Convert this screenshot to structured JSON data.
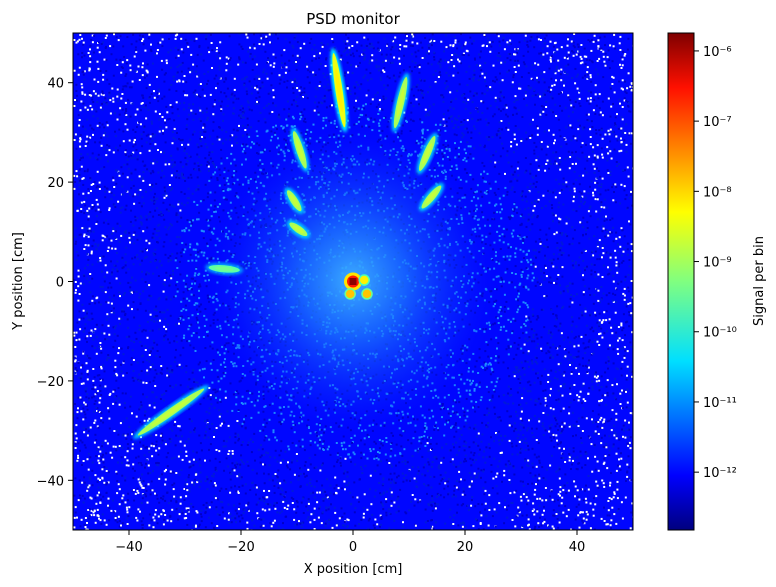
{
  "chart_data": {
    "type": "heatmap",
    "title": "PSD monitor",
    "xlabel": "X position [cm]",
    "ylabel": "Y position [cm]",
    "xlim": [
      -50,
      50
    ],
    "ylim": [
      -50,
      50
    ],
    "xticks": [
      -40,
      -20,
      0,
      20,
      40
    ],
    "yticks": [
      -40,
      -20,
      0,
      20,
      40
    ],
    "xtick_labels": [
      "−40",
      "−20",
      "0",
      "20",
      "40"
    ],
    "ytick_labels": [
      "−40",
      "−20",
      "0",
      "20",
      "40"
    ],
    "grid": false,
    "colormap": "jet",
    "colorbar": {
      "label": "Signal per bin",
      "scale": "log",
      "range": [
        1.5e-13,
        1.8e-06
      ],
      "ticks": [
        1e-12,
        1e-11,
        1e-10,
        1e-09,
        1e-08,
        1e-07,
        1e-06
      ],
      "tick_labels": [
        "10⁻¹²",
        "10⁻¹¹",
        "10⁻¹⁰",
        "10⁻⁹",
        "10⁻⁸",
        "10⁻⁷",
        "10⁻⁶"
      ]
    },
    "features": [
      {
        "kind": "direct-beam",
        "x": 0,
        "y": 0,
        "value": 1.5e-06
      },
      {
        "kind": "streak",
        "x1": -3.5,
        "y1": 46,
        "x2": -1.5,
        "y2": 31,
        "value": 3e-09
      },
      {
        "kind": "streak",
        "x1": 9.5,
        "y1": 41,
        "x2": 7.5,
        "y2": 31,
        "value": 1e-09
      },
      {
        "kind": "streak",
        "x1": -10.5,
        "y1": 30,
        "x2": -8.5,
        "y2": 23,
        "value": 1e-09
      },
      {
        "kind": "streak",
        "x1": 14.5,
        "y1": 29,
        "x2": 12,
        "y2": 22.5,
        "value": 1e-09
      },
      {
        "kind": "streak",
        "x1": -11.5,
        "y1": 18,
        "x2": -9.5,
        "y2": 14.5,
        "value": 1e-09
      },
      {
        "kind": "streak",
        "x1": 15.5,
        "y1": 19,
        "x2": 12.5,
        "y2": 15,
        "value": 1e-09
      },
      {
        "kind": "streak",
        "x1": -11,
        "y1": 11.5,
        "x2": -8.5,
        "y2": 9.5,
        "value": 1e-09
      },
      {
        "kind": "streak",
        "x1": -25.5,
        "y1": 2.8,
        "x2": -20.5,
        "y2": 2.3,
        "value": 3e-10
      },
      {
        "kind": "streak",
        "x1": -38.5,
        "y1": -31,
        "x2": -26.5,
        "y2": -21.5,
        "value": 1e-09
      },
      {
        "kind": "spot",
        "x": -0.5,
        "y": -2.5,
        "value": 1e-08
      },
      {
        "kind": "spot",
        "x": 2.5,
        "y": -2.5,
        "value": 1e-08
      },
      {
        "kind": "spot",
        "x": 2,
        "y": 0.3,
        "value": 5e-09
      }
    ]
  }
}
